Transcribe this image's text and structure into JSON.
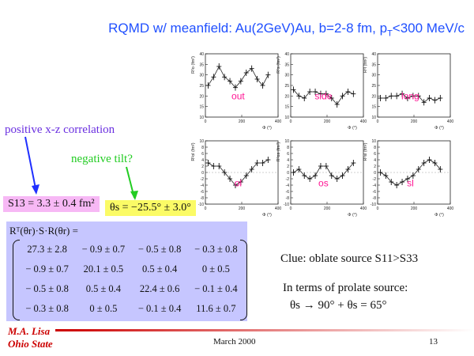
{
  "title": {
    "main": "RQMD w/ meanfield: Au(2GeV)Au, b=2-8 fm, p",
    "sub": "T",
    "tail": "<300 MeV/c"
  },
  "labels": {
    "correlation": "positive x-z correlation",
    "tilt": "negative tilt?",
    "s13": "S13 = 3.3 ± 0.4 fm²",
    "theta": "θs = −25.5° ± 3.0°"
  },
  "matrix": {
    "header": "Rᵀ(θr)·S·R(θr) =",
    "rows": [
      [
        "27.3 ± 2.8",
        "− 0.9 ± 0.7",
        "− 0.5 ± 0.8",
        "− 0.3 ± 0.8"
      ],
      [
        "− 0.9 ± 0.7",
        "20.1 ± 0.5",
        "0.5 ± 0.4",
        "0 ± 0.5"
      ],
      [
        "− 0.5 ± 0.8",
        "0.5 ± 0.4",
        "22.4 ± 0.6",
        "− 0.1 ± 0.4"
      ],
      [
        "− 0.3 ± 0.8",
        "0 ± 0.5",
        "− 0.1 ± 0.4",
        "11.6 ± 0.7"
      ]
    ]
  },
  "notes": {
    "clue": "Clue: oblate source S11>S33",
    "prolate_intro": "In terms of prolate source:",
    "prolate_eq": "θs → 90° + θs = 65°"
  },
  "footer": {
    "name1": "M.A. Lisa",
    "name2": "Ohio State",
    "date": "March 2000",
    "page": "13"
  },
  "colors": {
    "title": "#2050ff",
    "panel_label": "#ff1493",
    "correlation": "#6a2fe0",
    "tilt": "#22cc22"
  },
  "chart_data": [
    {
      "type": "scatter",
      "label": "out",
      "ylabel": "R²o (fm²)",
      "xlabel": "Φ (°)",
      "xlim": [
        0,
        400
      ],
      "ylim": [
        10,
        40
      ],
      "yticks": [
        10,
        15,
        20,
        25,
        30,
        35,
        40
      ],
      "xticks": [
        0,
        200,
        400
      ],
      "x": [
        15,
        45,
        75,
        105,
        135,
        165,
        195,
        225,
        255,
        285,
        315,
        345
      ],
      "y": [
        25,
        29,
        34,
        29,
        27,
        24,
        27,
        31,
        33,
        28,
        25,
        30
      ]
    },
    {
      "type": "scatter",
      "label": "side",
      "ylabel": "R²s (fm²)",
      "xlabel": "Φ (°)",
      "xlim": [
        0,
        400
      ],
      "ylim": [
        10,
        40
      ],
      "yticks": [
        10,
        15,
        20,
        25,
        30,
        35,
        40
      ],
      "xticks": [
        0,
        200,
        400
      ],
      "x": [
        15,
        45,
        75,
        105,
        135,
        165,
        195,
        225,
        255,
        285,
        315,
        345
      ],
      "y": [
        23,
        20,
        19,
        22,
        22,
        21,
        21,
        19,
        16,
        20,
        22,
        21
      ]
    },
    {
      "type": "scatter",
      "label": "long",
      "ylabel": "R²l (fm²)",
      "xlabel": "Φ (°)",
      "xlim": [
        0,
        400
      ],
      "ylim": [
        10,
        40
      ],
      "yticks": [
        10,
        15,
        20,
        25,
        30,
        35,
        40
      ],
      "xticks": [
        0,
        200,
        400
      ],
      "x": [
        15,
        45,
        75,
        105,
        135,
        165,
        195,
        225,
        255,
        285,
        315,
        345
      ],
      "y": [
        19,
        19,
        20,
        20,
        21,
        19,
        20,
        20,
        17,
        19,
        18,
        19
      ]
    },
    {
      "type": "scatter",
      "label": "ol",
      "ylabel": "R²ol (fm²)",
      "xlabel": "Φ (°)",
      "xlim": [
        0,
        400
      ],
      "ylim": [
        -10,
        10
      ],
      "yticks": [
        -10,
        -8,
        -6,
        -4,
        -2,
        0,
        2,
        4,
        6,
        8,
        10
      ],
      "xticks": [
        0,
        200,
        400
      ],
      "x": [
        15,
        45,
        75,
        105,
        135,
        165,
        195,
        225,
        255,
        285,
        315,
        345
      ],
      "y": [
        3,
        2,
        2,
        0,
        -2,
        -4,
        -3,
        -1,
        1,
        3,
        3,
        4
      ]
    },
    {
      "type": "scatter",
      "label": "os",
      "ylabel": "R²os (fm²)",
      "xlabel": "Φ (°)",
      "xlim": [
        0,
        400
      ],
      "ylim": [
        -10,
        10
      ],
      "yticks": [
        -10,
        -8,
        -6,
        -4,
        -2,
        0,
        2,
        4,
        6,
        8,
        10
      ],
      "xticks": [
        0,
        200,
        400
      ],
      "x": [
        15,
        45,
        75,
        105,
        135,
        165,
        195,
        225,
        255,
        285,
        315,
        345
      ],
      "y": [
        0,
        1,
        -1,
        -2,
        -1,
        2,
        2,
        -1,
        -2,
        -1,
        1,
        3
      ]
    },
    {
      "type": "scatter",
      "label": "sl",
      "ylabel": "R²sl (fm²)",
      "xlabel": "Φ (°)",
      "xlim": [
        0,
        400
      ],
      "ylim": [
        -10,
        10
      ],
      "yticks": [
        -10,
        -8,
        -6,
        -4,
        -2,
        0,
        2,
        4,
        6,
        8,
        10
      ],
      "xticks": [
        0,
        200,
        400
      ],
      "x": [
        15,
        45,
        75,
        105,
        135,
        165,
        195,
        225,
        255,
        285,
        315,
        345
      ],
      "y": [
        0,
        -1,
        -3,
        -4,
        -3,
        -2,
        -1,
        1,
        3,
        4,
        3,
        1
      ]
    }
  ]
}
